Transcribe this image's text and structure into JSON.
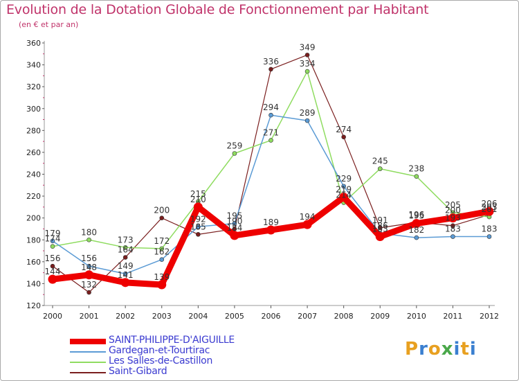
{
  "title": "Evolution de la Dotation Globale de Fonctionnement par Habitant",
  "subtitle": "(en € et par an)",
  "logo": {
    "letters": [
      "P",
      "r",
      "o",
      "x",
      "i",
      "t",
      "i"
    ],
    "colors": [
      "#e8a020",
      "#3a7fd0",
      "#e8a020",
      "#4aa84a",
      "#3a7fd0",
      "#e8a020",
      "#3a7fd0"
    ]
  },
  "chart_data": {
    "type": "line",
    "x": [
      "2000",
      "2001",
      "2002",
      "2003",
      "2004",
      "2005",
      "2006",
      "2007",
      "2008",
      "2009",
      "2010",
      "2011",
      "2012"
    ],
    "ylim": [
      120,
      360
    ],
    "yticks": [
      120,
      140,
      160,
      180,
      200,
      220,
      240,
      260,
      280,
      300,
      320,
      340,
      360
    ],
    "grid": false,
    "series": [
      {
        "name": "SAINT-PHILIPPE-D'AIGUILLE",
        "color": "#ee0000",
        "width": 9,
        "marker": 6.5,
        "values": [
          144,
          148,
          141,
          139,
          210,
          184,
          189,
          194,
          219,
          183,
          195,
          200,
          206
        ]
      },
      {
        "name": "Gardegan-et-Tourtirac",
        "color": "#5b9bd5",
        "width": 1.5,
        "marker": 3,
        "values": [
          179,
          156,
          149,
          162,
          192,
          195,
          294,
          289,
          229,
          186,
          182,
          183,
          183
        ]
      },
      {
        "name": "Les Salles-de-Castillon",
        "color": "#8fdc60",
        "width": 1.5,
        "marker": 3,
        "values": [
          174,
          180,
          173,
          172,
          215,
          259,
          271,
          334,
          214,
          245,
          238,
          205,
          201
        ]
      },
      {
        "name": "Saint-Gibard",
        "color": "#7a1e1e",
        "width": 1.2,
        "marker": 3,
        "values": [
          156,
          132,
          164,
          200,
          185,
          190,
          336,
          349,
          274,
          191,
          196,
          193,
          203
        ]
      }
    ]
  }
}
